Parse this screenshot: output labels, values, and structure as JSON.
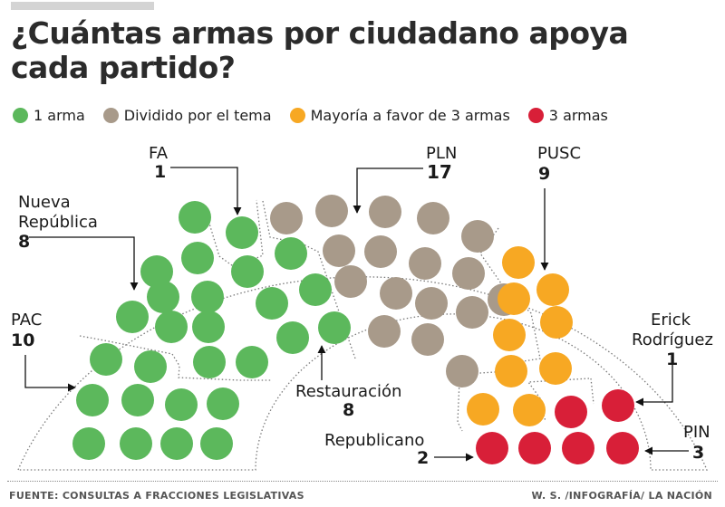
{
  "title": "¿Cuántas armas por ciudadano apoya cada partido?",
  "colors": {
    "green": "#5cb85c",
    "taupe": "#a89a8a",
    "orange": "#f7a823",
    "red": "#d81f38"
  },
  "chart_data": {
    "type": "parliament",
    "legend": [
      {
        "key": "green",
        "label": "1 arma"
      },
      {
        "key": "taupe",
        "label": "Dividido por el tema"
      },
      {
        "key": "orange",
        "label": "Mayoría a favor de 3 armas"
      },
      {
        "key": "red",
        "label": "3 armas"
      }
    ],
    "parties": [
      {
        "name": "PAC",
        "seats": 10,
        "position": "1 arma"
      },
      {
        "name": "Nueva República",
        "seats": 8,
        "position": "1 arma"
      },
      {
        "name": "FA",
        "seats": 1,
        "position": "1 arma"
      },
      {
        "name": "Restauración",
        "seats": 8,
        "position": "1 arma"
      },
      {
        "name": "PLN",
        "seats": 17,
        "position": "Dividido por el tema"
      },
      {
        "name": "PUSC",
        "seats": 9,
        "position": "Mayoría a favor de 3 armas"
      },
      {
        "name": "Erick Rodríguez",
        "seats": 1,
        "position": "3 armas"
      },
      {
        "name": "Republicano",
        "seats": 2,
        "position": "3 armas"
      },
      {
        "name": "PIN",
        "seats": 3,
        "position": "3 armas"
      }
    ]
  },
  "labels": {
    "fa": {
      "name": "FA",
      "count": "1"
    },
    "pln": {
      "name": "PLN",
      "count": "17"
    },
    "pusc": {
      "name": "PUSC",
      "count": "9"
    },
    "nueva_republica": {
      "name_line1": "Nueva",
      "name_line2": "República",
      "count": "8"
    },
    "pac": {
      "name": "PAC",
      "count": "10"
    },
    "erick": {
      "name_line1": "Erick",
      "name_line2": "Rodríguez",
      "count": "1"
    },
    "restauracion": {
      "name": "Restauración",
      "count": "8"
    },
    "republicano": {
      "name": "Republicano",
      "count": "2"
    },
    "pin": {
      "name": "PIN",
      "count": "3"
    }
  },
  "footer": {
    "source": "FUENTE: CONSULTAS A FRACCIONES LEGISLATIVAS",
    "credit": "W. S. /INFOGRAFÍA/ LA NACIÓN"
  }
}
